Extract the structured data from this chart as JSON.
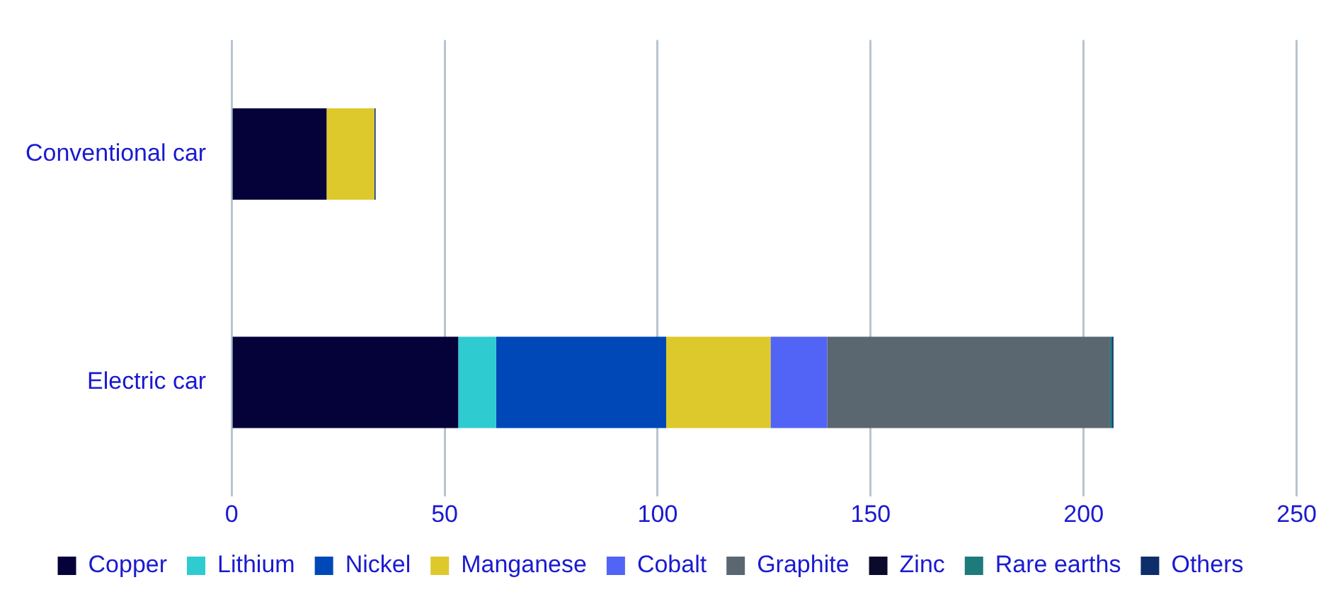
{
  "chart_data": {
    "type": "bar",
    "orientation": "horizontal",
    "stacked": true,
    "categories": [
      "Conventional car",
      "Electric car"
    ],
    "series": [
      {
        "name": "Copper",
        "color": "#05023a",
        "values": [
          22.3,
          53.2
        ]
      },
      {
        "name": "Lithium",
        "color": "#2ecbd1",
        "values": [
          null,
          8.9
        ]
      },
      {
        "name": "Nickel",
        "color": "#0048b8",
        "values": [
          null,
          39.9
        ]
      },
      {
        "name": "Manganese",
        "color": "#ddc92c",
        "values": [
          11.2,
          24.5
        ]
      },
      {
        "name": "Cobalt",
        "color": "#5264f5",
        "values": [
          null,
          13.3
        ]
      },
      {
        "name": "Graphite",
        "color": "#5b6770",
        "values": [
          null,
          66.3
        ]
      },
      {
        "name": "Zinc",
        "color": "#0a0a2a",
        "values": [
          null,
          0.1
        ]
      },
      {
        "name": "Rare earths",
        "color": "#1e7b7b",
        "values": [
          null,
          0.5
        ]
      },
      {
        "name": "Others",
        "color": "#0d2d6b",
        "values": [
          0.3,
          0.3
        ]
      }
    ],
    "xlim": [
      0,
      250
    ],
    "xticks": [
      0,
      50,
      100,
      150,
      200,
      250
    ],
    "grid": "x",
    "legend": "bottom"
  }
}
